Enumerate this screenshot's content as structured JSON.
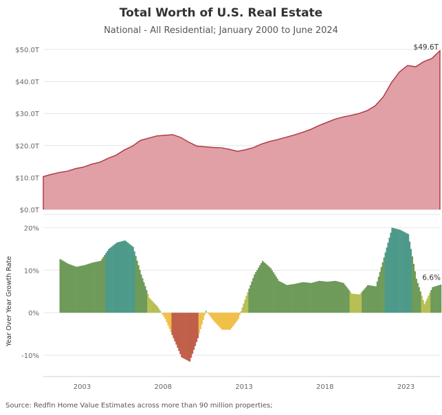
{
  "title": "Total Worth of U.S. Real Estate",
  "subtitle": "National - All Residential; January 2000 to June 2024",
  "source": "Source: Redfin Home Value Estimates across more than 90 million properties;",
  "colors": {
    "area_fill": "#e0a0a6",
    "area_line": "#b03a48",
    "grid": "#e6e6e6",
    "growth_high": "#4e9a8a",
    "growth_mid": "#6e9a5a",
    "growth_low": "#b7bf55",
    "growth_neg_small": "#f0c04a",
    "growth_neg_large": "#c0604a"
  },
  "chart_data": [
    {
      "type": "area",
      "title": "Total Worth of U.S. Real Estate",
      "subtitle": "National - All Residential; January 2000 to June 2024",
      "ylabel": "",
      "ylim": [
        0,
        50
      ],
      "xlim": [
        2000.0,
        2024.5
      ],
      "yticks": [
        "$0.0T",
        "$10.0T",
        "$20.0T",
        "$30.0T",
        "$40.0T",
        "$50.0T"
      ],
      "x": [
        2000.0,
        2000.5,
        2001.0,
        2001.5,
        2002.0,
        2002.5,
        2003.0,
        2003.5,
        2004.0,
        2004.5,
        2005.0,
        2005.5,
        2006.0,
        2006.5,
        2007.0,
        2007.5,
        2008.0,
        2008.5,
        2009.0,
        2009.5,
        2010.0,
        2010.5,
        2011.0,
        2011.5,
        2012.0,
        2012.5,
        2013.0,
        2013.5,
        2014.0,
        2014.5,
        2015.0,
        2015.5,
        2016.0,
        2016.5,
        2017.0,
        2017.5,
        2018.0,
        2018.5,
        2019.0,
        2019.5,
        2020.0,
        2020.5,
        2021.0,
        2021.5,
        2022.0,
        2022.5,
        2023.0,
        2023.5,
        2024.0,
        2024.5
      ],
      "series": [
        {
          "values": [
            10.3,
            11.0,
            11.6,
            12.0,
            12.8,
            13.3,
            14.2,
            14.8,
            16.0,
            17.0,
            18.6,
            19.8,
            21.6,
            22.3,
            23.0,
            23.2,
            23.4,
            22.5,
            21.0,
            19.8,
            19.6,
            19.4,
            19.3,
            18.8,
            18.2,
            18.7,
            19.4,
            20.5,
            21.3,
            21.9,
            22.6,
            23.3,
            24.1,
            25.0,
            26.2,
            27.2,
            28.2,
            28.9,
            29.4,
            30.0,
            30.9,
            32.4,
            35.2,
            39.6,
            43.0,
            45.0,
            44.6,
            46.2,
            47.2,
            49.6
          ]
        }
      ],
      "annotations": [
        {
          "x": 2024.5,
          "label": "$49.6T"
        }
      ]
    },
    {
      "type": "bar",
      "ylabel": "Year Over Year Growth Rate",
      "ylim": [
        -15,
        22
      ],
      "xlim": [
        2000.0,
        2024.5
      ],
      "yticks": [
        "-10%",
        "0%",
        "10%",
        "20%"
      ],
      "xticks": [
        "2003",
        "2008",
        "2013",
        "2018",
        "2023"
      ],
      "x": [
        2001.0,
        2001.5,
        2002.0,
        2002.5,
        2003.0,
        2003.5,
        2004.0,
        2004.5,
        2005.0,
        2005.5,
        2006.0,
        2006.5,
        2007.0,
        2007.5,
        2008.0,
        2008.5,
        2009.0,
        2009.5,
        2010.0,
        2010.5,
        2011.0,
        2011.5,
        2012.0,
        2012.5,
        2013.0,
        2013.5,
        2014.0,
        2014.5,
        2015.0,
        2015.5,
        2016.0,
        2016.5,
        2017.0,
        2017.5,
        2018.0,
        2018.5,
        2019.0,
        2019.5,
        2020.0,
        2020.5,
        2021.0,
        2021.5,
        2022.0,
        2022.5,
        2023.0,
        2023.5,
        2024.0,
        2024.5
      ],
      "series": [
        {
          "values": [
            12.6,
            11.5,
            10.8,
            11.2,
            11.8,
            12.2,
            15.0,
            16.5,
            17.0,
            15.5,
            9.0,
            3.5,
            1.5,
            -1.5,
            -6.0,
            -10.5,
            -11.5,
            -6.0,
            0.5,
            -2.0,
            -4.0,
            -4.0,
            -1.5,
            4.0,
            9.0,
            12.2,
            10.5,
            7.5,
            6.5,
            6.8,
            7.2,
            7.0,
            7.5,
            7.3,
            7.5,
            7.0,
            4.5,
            4.3,
            6.5,
            6.2,
            13.0,
            20.0,
            19.5,
            18.5,
            8.0,
            2.0,
            6.0,
            6.6
          ]
        }
      ],
      "annotations": [
        {
          "x": 2024.5,
          "label": "6.6%"
        }
      ]
    }
  ]
}
